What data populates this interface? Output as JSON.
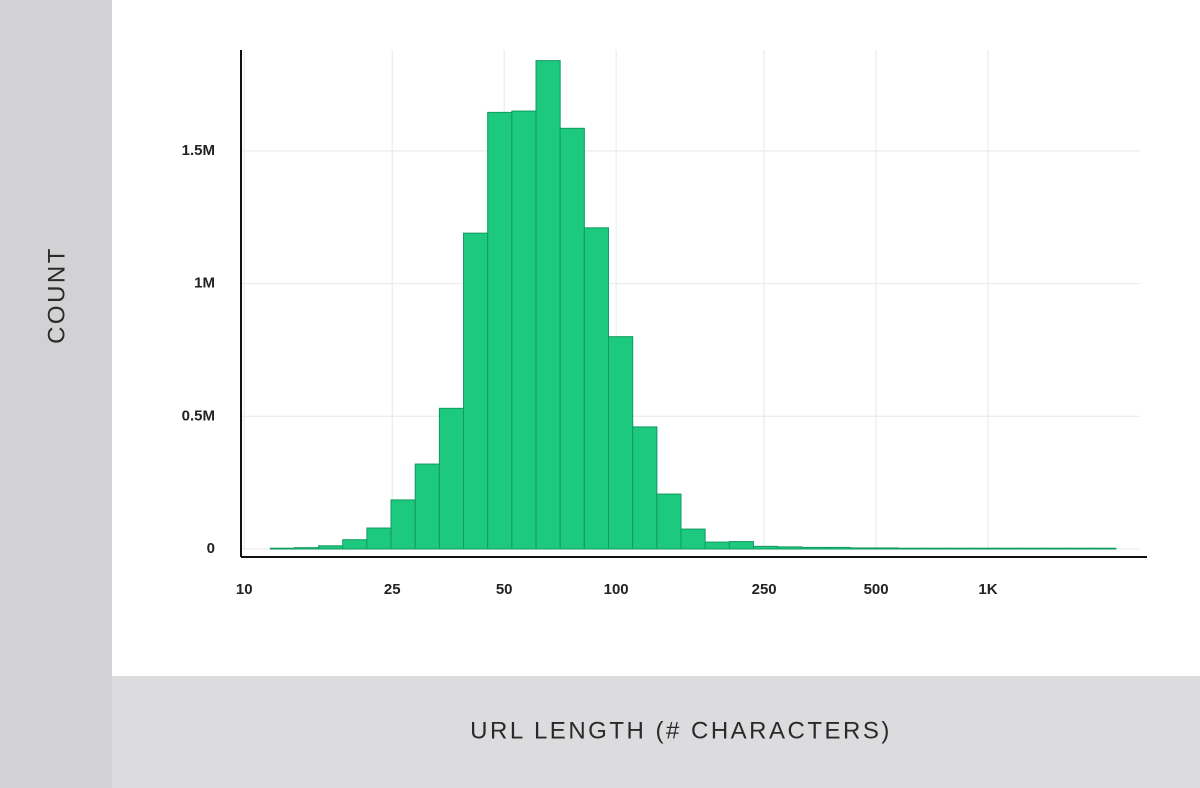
{
  "chart_data": {
    "type": "histogram",
    "xlabel": "URL LENGTH (# CHARACTERS)",
    "ylabel": "COUNT",
    "bins": [
      11.75,
      13.64,
      15.84,
      18.4,
      21.37,
      24.81,
      28.82,
      33.47,
      38.87,
      45.14,
      52.43,
      60.89,
      70.71,
      82.13,
      95.37,
      110.8,
      128.7,
      149.4,
      173.5,
      201.5,
      234,
      271.8,
      315.6,
      366.5,
      425.7,
      494.4,
      574.1,
      666.8,
      774.4,
      899.2,
      1044,
      1213,
      1408,
      1636,
      1900,
      2207
    ],
    "counts": [
      3000,
      5000,
      12000,
      35000,
      79000,
      185000,
      320000,
      530000,
      1190000,
      1645000,
      1650000,
      1840000,
      1585000,
      1210000,
      800000,
      460000,
      207000,
      75000,
      26000,
      28000,
      10000,
      8000,
      6000,
      6000,
      4000,
      4000,
      3000,
      3000,
      3000,
      3000,
      3000,
      3000,
      3000,
      3000,
      3000
    ],
    "color": "#1dc97f",
    "edge_color": "#109a60",
    "xlim": [
      9.8,
      2676
    ],
    "log_x": true,
    "xticks": [
      10,
      25,
      50,
      100,
      250,
      500,
      {
        "value": 1000,
        "label": "1K"
      }
    ],
    "ylim": [
      0,
      1880000
    ],
    "yticks": [
      0,
      {
        "value": 500000,
        "label": "0.5M"
      },
      {
        "value": 1000000,
        "label": "1M"
      },
      {
        "value": 1500000,
        "label": "1.5M"
      }
    ],
    "grid": true
  }
}
